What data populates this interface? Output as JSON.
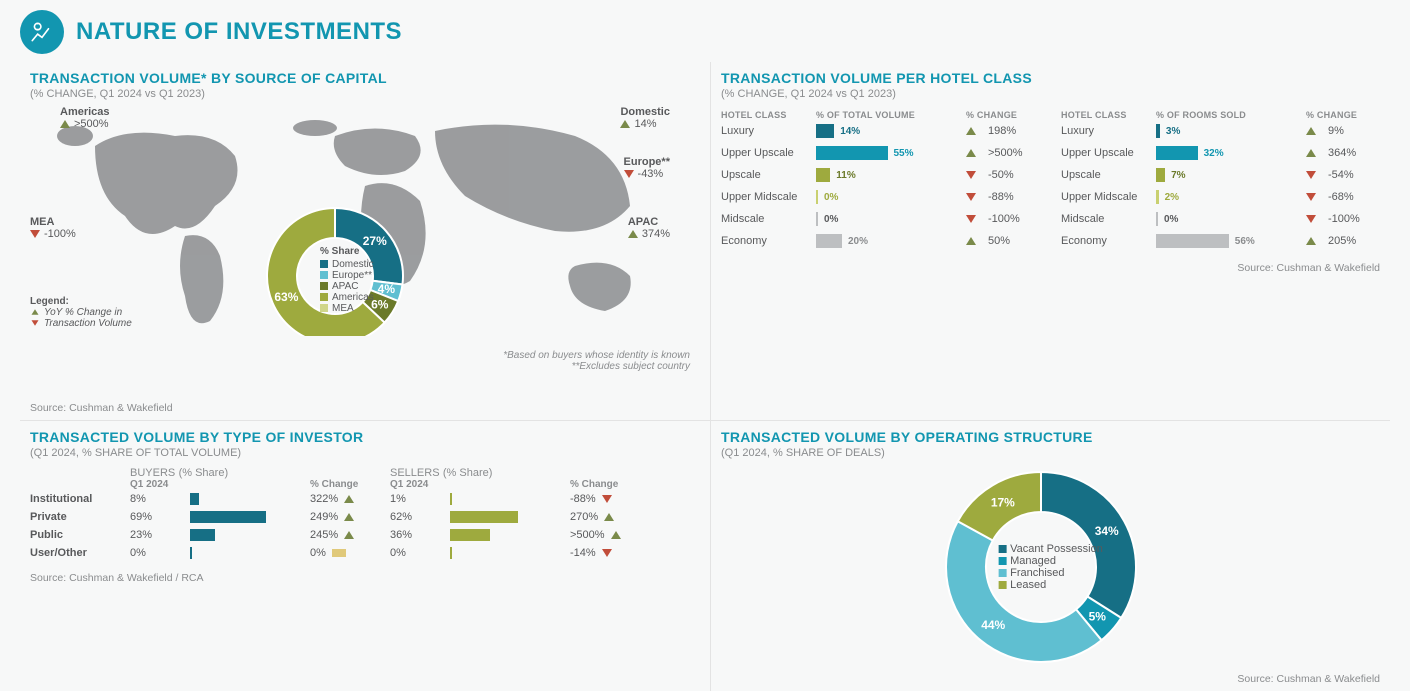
{
  "header": {
    "title": "NATURE OF INVESTMENTS"
  },
  "colors": {
    "brand": "#1296b0",
    "teal_dark": "#166f85",
    "teal": "#1296b0",
    "teal_light": "#5fbfd1",
    "olive": "#9eaa3e",
    "olive_dark": "#7a8a2e",
    "grey": "#bdbfc1",
    "up": "#7a8a4a",
    "down": "#c14d3a",
    "text_grey": "#8a8c8e"
  },
  "sourceCapital": {
    "title": "TRANSACTION VOLUME* BY SOURCE OF CAPITAL",
    "sub": "(% CHANGE, Q1 2024 vs Q1 2023)",
    "regions": [
      {
        "name": "Americas",
        "value": ">500%",
        "dir": "up"
      },
      {
        "name": "Domestic",
        "value": "14%",
        "dir": "up"
      },
      {
        "name": "Europe**",
        "value": "-43%",
        "dir": "down"
      },
      {
        "name": "MEA",
        "value": "-100%",
        "dir": "down"
      },
      {
        "name": "APAC",
        "value": "374%",
        "dir": "up"
      }
    ],
    "legend_title": "Legend:",
    "legend_lines": [
      "YoY % Change in",
      "Transaction Volume"
    ],
    "donut": {
      "type": "donut",
      "title": "% Share",
      "slices": [
        {
          "label": "Domestic",
          "value": 27,
          "color": "#166f85"
        },
        {
          "label": "Europe**",
          "value": 4,
          "color": "#5fbfd1"
        },
        {
          "label": "APAC",
          "value": 6,
          "color": "#6b7a2a"
        },
        {
          "label": "Americas",
          "value": 63,
          "color": "#9eaa3e"
        },
        {
          "label": "MEA",
          "value": 0,
          "color": "#d0d68a"
        }
      ]
    },
    "footnotes": [
      "*Based on buyers whose identity is known",
      "**Excludes subject country"
    ],
    "source": "Source: Cushman & Wakefield"
  },
  "hotelClass": {
    "title": "TRANSACTION VOLUME PER HOTEL CLASS",
    "sub": "(% CHANGE, Q1 2024 vs Q1 2023)",
    "left": {
      "headers": [
        "HOTEL CLASS",
        "% OF TOTAL VOLUME",
        "% CHANGE"
      ],
      "rows": [
        {
          "label": "Luxury",
          "pct": 14,
          "color": "#166f85",
          "pct_color": "#166f85",
          "change": "198%",
          "dir": "up"
        },
        {
          "label": "Upper Upscale",
          "pct": 55,
          "color": "#1296b0",
          "pct_color": "#1296b0",
          "change": ">500%",
          "dir": "up"
        },
        {
          "label": "Upscale",
          "pct": 11,
          "color": "#9eaa3e",
          "pct_color": "#6b7a2a",
          "change": "-50%",
          "dir": "down"
        },
        {
          "label": "Upper Midscale",
          "pct": 0,
          "color": "#c9d070",
          "pct_color": "#9eaa3e",
          "change": "-88%",
          "dir": "down"
        },
        {
          "label": "Midscale",
          "pct": 0,
          "color": "#bdbfc1",
          "pct_color": "#58595b",
          "change": "-100%",
          "dir": "down"
        },
        {
          "label": "Economy",
          "pct": 20,
          "color": "#bdbfc1",
          "pct_color": "#8a8c8e",
          "change": "50%",
          "dir": "up"
        }
      ]
    },
    "right": {
      "headers": [
        "HOTEL CLASS",
        "% OF ROOMS SOLD",
        "% CHANGE"
      ],
      "rows": [
        {
          "label": "Luxury",
          "pct": 3,
          "color": "#166f85",
          "pct_color": "#166f85",
          "change": "9%",
          "dir": "up"
        },
        {
          "label": "Upper Upscale",
          "pct": 32,
          "color": "#1296b0",
          "pct_color": "#1296b0",
          "change": "364%",
          "dir": "up"
        },
        {
          "label": "Upscale",
          "pct": 7,
          "color": "#9eaa3e",
          "pct_color": "#6b7a2a",
          "change": "-54%",
          "dir": "down"
        },
        {
          "label": "Upper Midscale",
          "pct": 2,
          "color": "#c9d070",
          "pct_color": "#9eaa3e",
          "change": "-68%",
          "dir": "down"
        },
        {
          "label": "Midscale",
          "pct": 0,
          "color": "#bdbfc1",
          "pct_color": "#58595b",
          "change": "-100%",
          "dir": "down"
        },
        {
          "label": "Economy",
          "pct": 56,
          "color": "#bdbfc1",
          "pct_color": "#8a8c8e",
          "change": "205%",
          "dir": "up"
        }
      ]
    },
    "source": "Source: Cushman & Wakefield"
  },
  "investorType": {
    "title": "TRANSACTED VOLUME BY TYPE OF INVESTOR",
    "sub": "(Q1 2024, % SHARE OF TOTAL VOLUME)",
    "buyers_label": "BUYERS",
    "sellers_label": "SELLERS",
    "share_label": "(% Share)",
    "period": "Q1 2024",
    "change_label": "% Change",
    "rows": [
      {
        "label": "Institutional",
        "buyer_pct": 8,
        "buyer_bar": 8,
        "buyer_change": "322%",
        "buyer_dir": "up",
        "seller_pct": 1,
        "seller_bar": 1,
        "seller_change": "-88%",
        "seller_dir": "down"
      },
      {
        "label": "Private",
        "buyer_pct": 69,
        "buyer_bar": 69,
        "buyer_change": "249%",
        "buyer_dir": "up",
        "seller_pct": 62,
        "seller_bar": 62,
        "seller_change": "270%",
        "seller_dir": "up"
      },
      {
        "label": "Public",
        "buyer_pct": 23,
        "buyer_bar": 23,
        "buyer_change": "245%",
        "buyer_dir": "up",
        "seller_pct": 36,
        "seller_bar": 36,
        "seller_change": ">500%",
        "seller_dir": "up"
      },
      {
        "label": "User/Other",
        "buyer_pct": 0,
        "buyer_bar": 0,
        "buyer_change": "0%",
        "buyer_dir": "none",
        "seller_pct": 0,
        "seller_bar": 0,
        "seller_change": "-14%",
        "seller_dir": "down"
      }
    ],
    "buyer_bar_color": "#166f85",
    "seller_bar_color": "#9eaa3e",
    "neutral_bar_color": "#e0c97a",
    "source": "Source: Cushman & Wakefield / RCA"
  },
  "operating": {
    "title": "TRANSACTED VOLUME BY OPERATING STRUCTURE",
    "sub": "(Q1 2024, % SHARE OF DEALS)",
    "type": "donut",
    "slices": [
      {
        "label": "Vacant Possession",
        "value": 34,
        "color": "#166f85"
      },
      {
        "label": "Managed",
        "value": 5,
        "color": "#1296b0"
      },
      {
        "label": "Franchised",
        "value": 44,
        "color": "#5fbfd1"
      },
      {
        "label": "Leased",
        "value": 17,
        "color": "#9eaa3e"
      }
    ],
    "source": "Source: Cushman & Wakefield"
  }
}
